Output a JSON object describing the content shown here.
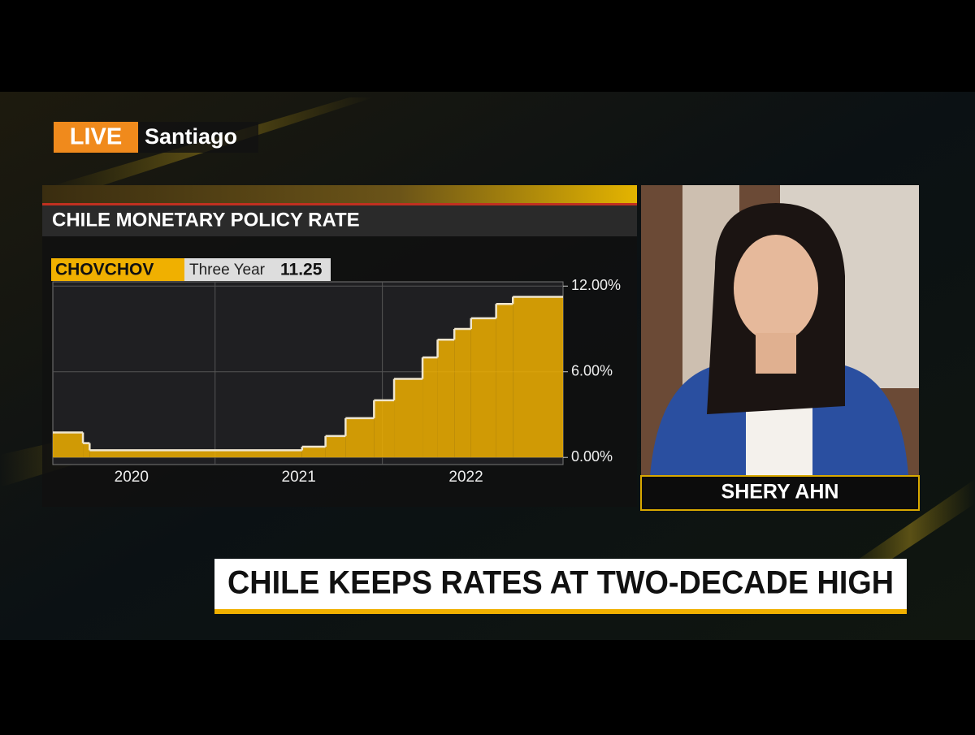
{
  "broadcast": {
    "live": "LIVE",
    "location": "Santiago",
    "anchor": "SHERY AHN",
    "headline": "CHILE KEEPS RATES AT TWO-DECADE HIGH"
  },
  "chart_data": {
    "type": "step",
    "title": "CHILE MONETARY POLICY RATE",
    "ticker": "CHOVCHOV",
    "period": "Three Year",
    "last_value": "11.25",
    "x": [
      2020.03,
      2020.21,
      2020.25,
      2021.52,
      2021.66,
      2021.78,
      2021.95,
      2022.07,
      2022.24,
      2022.33,
      2022.43,
      2022.53,
      2022.68,
      2022.78
    ],
    "values": [
      1.75,
      1.0,
      0.5,
      0.75,
      1.5,
      2.75,
      4.0,
      5.5,
      7.0,
      8.25,
      9.0,
      9.75,
      10.75,
      11.25
    ],
    "color": "#f0b000",
    "xlim": [
      2020.03,
      2023.08
    ],
    "ylim": [
      -0.5,
      12.3
    ],
    "xticks": [
      {
        "value": 2020.5,
        "label": "2020"
      },
      {
        "value": 2021.5,
        "label": "2021"
      },
      {
        "value": 2022.5,
        "label": "2022"
      }
    ],
    "xgrid": [
      2021,
      2022
    ],
    "yticks": [
      {
        "value": 0,
        "label": "0.00%"
      },
      {
        "value": 6,
        "label": "6.00%"
      },
      {
        "value": 12,
        "label": "12.00%"
      }
    ],
    "grid": true
  }
}
